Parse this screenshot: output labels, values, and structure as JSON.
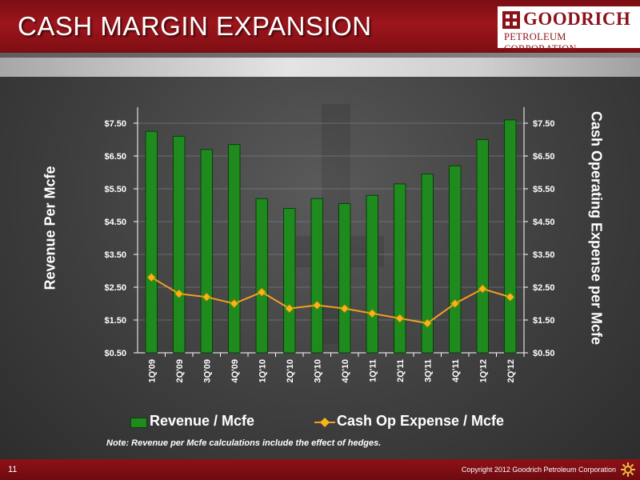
{
  "slide": {
    "title": "CASH MARGIN EXPANSION",
    "page_number": "11",
    "copyright": "Copyright 2012 Goodrich Petroleum Corporation",
    "note": "Note:  Revenue per Mcfe calculations include the effect of hedges."
  },
  "logo": {
    "name": "GOODRICH",
    "subtitle": "PETROLEUM CORPORATION",
    "icon": "goodrich-logo-icon"
  },
  "colors": {
    "header_red": "#9e151c",
    "bar_green": "#1f8b1f",
    "line_orange": "#f5a020",
    "marker_orange": "#f7b417"
  },
  "chart_data": {
    "type": "bar",
    "categories": [
      "1Q'09",
      "2Q'09",
      "3Q'09",
      "4Q'09",
      "1Q'10",
      "2Q'10",
      "3Q'10",
      "4Q'10",
      "1Q'11",
      "2Q'11",
      "3Q'11",
      "4Q'11",
      "1Q'12",
      "2Q'12"
    ],
    "series": [
      {
        "name": "Revenue / Mcfe",
        "type": "bar",
        "values": [
          7.25,
          7.1,
          6.7,
          6.85,
          5.2,
          4.9,
          5.2,
          5.05,
          5.3,
          5.65,
          5.95,
          6.2,
          7.0,
          7.6
        ]
      },
      {
        "name": "Cash Op Expense / Mcfe",
        "type": "line",
        "values": [
          2.8,
          2.3,
          2.2,
          2.0,
          2.35,
          1.85,
          1.95,
          1.85,
          1.7,
          1.55,
          1.4,
          2.0,
          2.45,
          2.2
        ]
      }
    ],
    "ylabel_left": "Revenue Per Mcfe",
    "ylabel_right": "Cash Operating Expense per Mcfe",
    "ylim": [
      0.5,
      7.5
    ],
    "yticks": [
      "$0.50",
      "$1.50",
      "$2.50",
      "$3.50",
      "$4.50",
      "$5.50",
      "$6.50",
      "$7.50"
    ],
    "grid": true,
    "legend_position": "bottom"
  }
}
